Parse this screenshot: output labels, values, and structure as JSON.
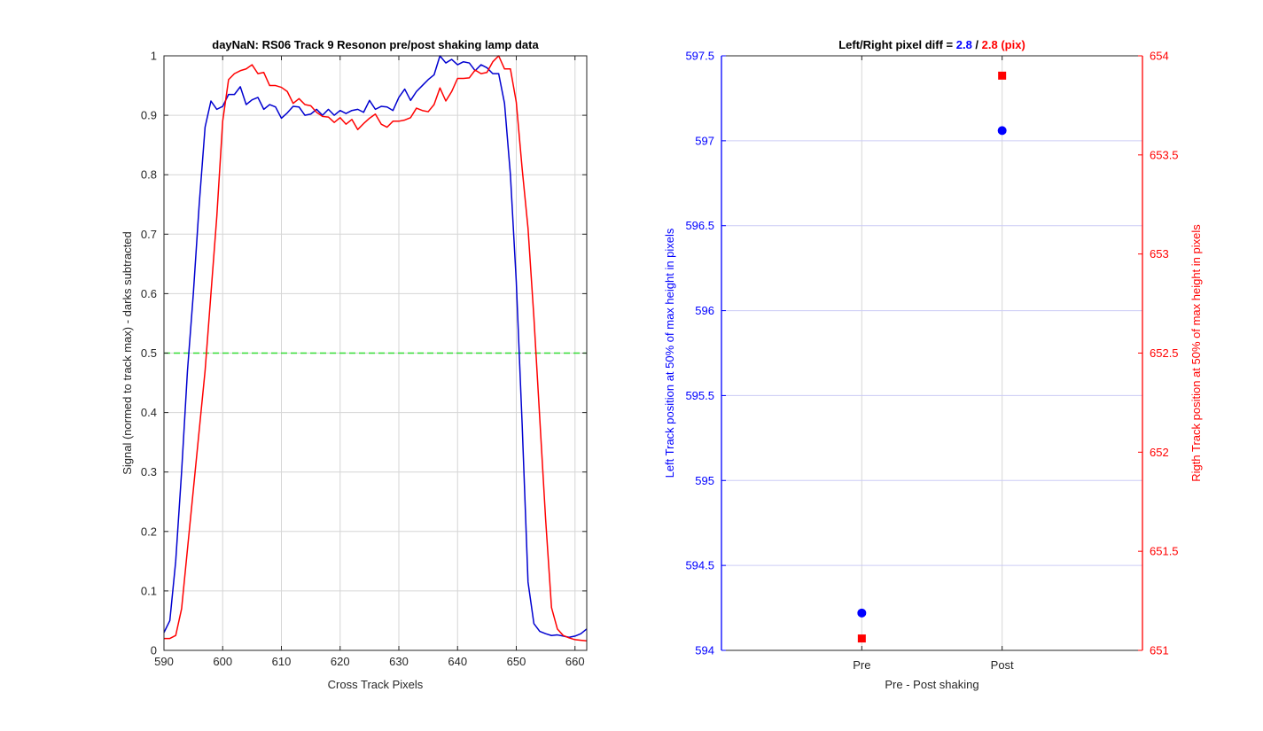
{
  "chart_data": [
    {
      "type": "line",
      "title": "dayNaN: RS06  Track 9 Resonon pre/post shaking lamp data",
      "xlabel": "Cross Track Pixels",
      "ylabel": "Signal (normed to track max) - darks subtracted",
      "xlim": [
        590,
        662
      ],
      "ylim": [
        0,
        1
      ],
      "xticks": [
        590,
        600,
        610,
        620,
        630,
        640,
        650,
        660
      ],
      "yticks": [
        0,
        0.1,
        0.2,
        0.3,
        0.4,
        0.5,
        0.6,
        0.7,
        0.8,
        0.9,
        1
      ],
      "grid": true,
      "colors": {
        "series1": "#0000d0",
        "series2": "#ff0000",
        "threshold": "#33dd33",
        "grid": "#d6d6d6"
      },
      "threshold": 0.5,
      "x": [
        590,
        591,
        592,
        593,
        594,
        595,
        596,
        597,
        598,
        599,
        600,
        601,
        602,
        603,
        604,
        605,
        606,
        607,
        608,
        609,
        610,
        611,
        612,
        613,
        614,
        615,
        616,
        617,
        618,
        619,
        620,
        621,
        622,
        623,
        624,
        625,
        626,
        627,
        628,
        629,
        630,
        631,
        632,
        633,
        634,
        635,
        636,
        637,
        638,
        639,
        640,
        641,
        642,
        643,
        644,
        645,
        646,
        647,
        648,
        649,
        650,
        651,
        652,
        653,
        654,
        655,
        656,
        657,
        658,
        659,
        660,
        661,
        662
      ],
      "series": [
        {
          "values": [
            0.03,
            0.05,
            0.15,
            0.3,
            0.47,
            0.6,
            0.75,
            0.88,
            0.924,
            0.91,
            0.915,
            0.935,
            0.935,
            0.948,
            0.918,
            0.926,
            0.93,
            0.91,
            0.918,
            0.914,
            0.895,
            0.904,
            0.915,
            0.914,
            0.9,
            0.902,
            0.91,
            0.9,
            0.91,
            0.9,
            0.908,
            0.903,
            0.908,
            0.91,
            0.905,
            0.925,
            0.91,
            0.915,
            0.914,
            0.908,
            0.93,
            0.944,
            0.925,
            0.94,
            0.95,
            0.96,
            0.968,
            1.0,
            0.988,
            0.994,
            0.985,
            0.99,
            0.988,
            0.975,
            0.985,
            0.98,
            0.97,
            0.97,
            0.92,
            0.8,
            0.62,
            0.38,
            0.115,
            0.045,
            0.032,
            0.028,
            0.025,
            0.026,
            0.024,
            0.022,
            0.024,
            0.028,
            0.036
          ]
        },
        {
          "values": [
            0.02,
            0.02,
            0.025,
            0.07,
            0.17,
            0.27,
            0.37,
            0.47,
            0.6,
            0.73,
            0.89,
            0.96,
            0.97,
            0.975,
            0.978,
            0.985,
            0.97,
            0.972,
            0.95,
            0.95,
            0.947,
            0.94,
            0.92,
            0.928,
            0.918,
            0.916,
            0.905,
            0.898,
            0.897,
            0.888,
            0.896,
            0.885,
            0.893,
            0.876,
            0.886,
            0.895,
            0.902,
            0.885,
            0.88,
            0.89,
            0.89,
            0.892,
            0.896,
            0.912,
            0.908,
            0.906,
            0.918,
            0.946,
            0.924,
            0.94,
            0.962,
            0.962,
            0.963,
            0.976,
            0.97,
            0.972,
            0.99,
            1.0,
            0.978,
            0.978,
            0.922,
            0.81,
            0.71,
            0.56,
            0.39,
            0.22,
            0.072,
            0.036,
            0.025,
            0.021,
            0.018,
            0.017,
            0.016
          ]
        }
      ]
    },
    {
      "type": "scatter",
      "title_parts": [
        {
          "text": "Left/Right pixel diff = ",
          "color": "#000000"
        },
        {
          "text": "2.8",
          "color": "#0000ff"
        },
        {
          "text": " / ",
          "color": "#000000"
        },
        {
          "text": "2.8 (pix)",
          "color": "#ff0000"
        }
      ],
      "xlabel": "Pre - Post shaking",
      "ylabel_left": "Left Track position at 50% of max height in pixels",
      "ylabel_right": "Rigth Track position at 50% of max height in pixels",
      "categories": [
        "Pre",
        "Post"
      ],
      "xlim": [
        0.0,
        1.5
      ],
      "category_x": [
        0.5,
        1.0
      ],
      "ylim_left": [
        594,
        597.5
      ],
      "yticks_left": [
        594,
        594.5,
        595,
        595.5,
        596,
        596.5,
        597,
        597.5
      ],
      "ylim_right": [
        651,
        654
      ],
      "yticks_right": [
        651,
        651.5,
        652,
        652.5,
        653,
        653.5,
        654
      ],
      "grid": true,
      "colors": {
        "left": "#0000ff",
        "right": "#ff0000",
        "hgrid": "#ccccf5",
        "vgrid": "#d8d8d8"
      },
      "left_values": [
        594.22,
        597.06
      ],
      "right_values": [
        651.06,
        653.9
      ]
    }
  ]
}
